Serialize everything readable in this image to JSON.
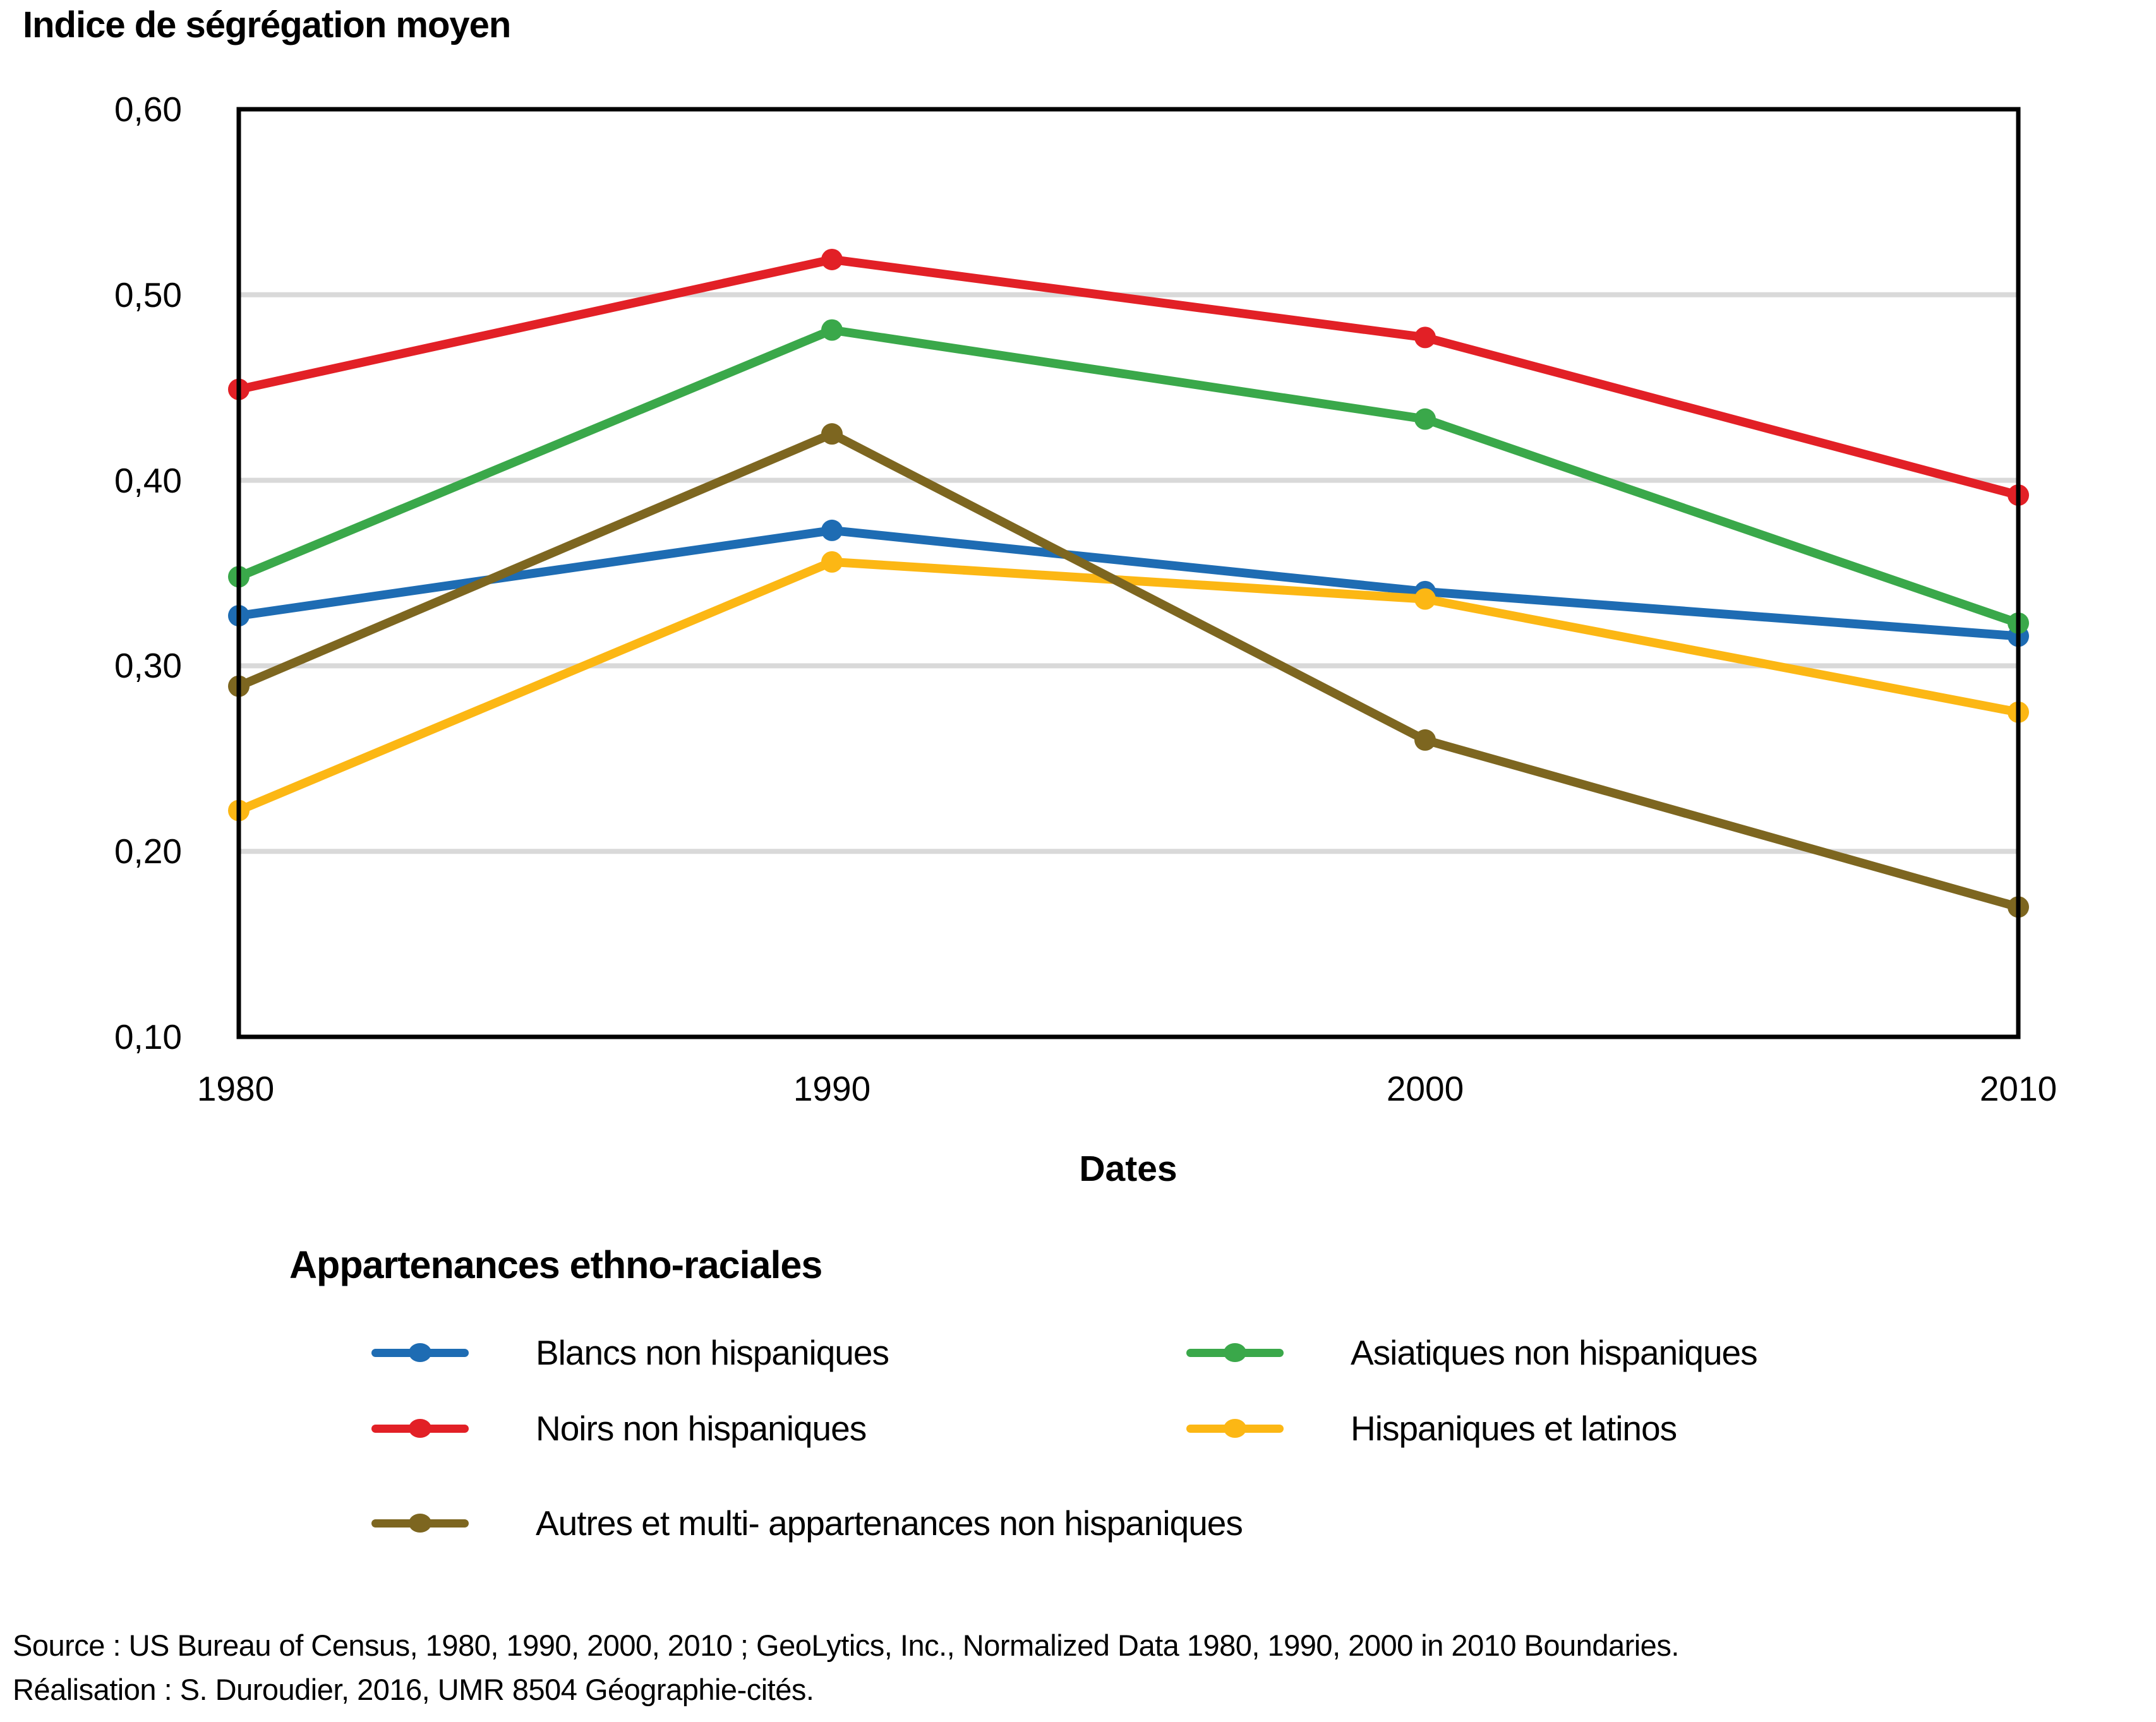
{
  "title": "Indice de ségrégation moyen",
  "chart_data": {
    "type": "line",
    "title": "Indice de ségrégation moyen",
    "x": [
      1980,
      1990,
      2000,
      2010
    ],
    "x_tick_labels": [
      "1980",
      "1990",
      "2000",
      "2010"
    ],
    "xlabel": "Dates",
    "ylabel": "Indice de ségrégation moyen",
    "ylim": [
      0.1,
      0.6
    ],
    "y_ticks": [
      0.6,
      0.5,
      0.4,
      0.3,
      0.2,
      0.1
    ],
    "y_tick_labels": [
      "0,60",
      "0,50",
      "0,40",
      "0,30",
      "0,20",
      "0,10"
    ],
    "grid": "horizontal-gridlines-on",
    "gridline_color": "#d9d9d9",
    "axis_box_color": "#000000",
    "legend_title": "Appartenances ethno-raciales",
    "legend_position": "below-chart, two columns then full-width row",
    "series": [
      {
        "name": "Blancs non hispaniques",
        "color": "#1e6cb3",
        "values": [
          0.327,
          0.373,
          0.34,
          0.316
        ]
      },
      {
        "name": "Noirs non hispaniques",
        "color": "#e22026",
        "values": [
          0.449,
          0.519,
          0.477,
          0.392
        ]
      },
      {
        "name": "Asiatiques non hispaniques",
        "color": "#3aa84a",
        "values": [
          0.348,
          0.481,
          0.433,
          0.323
        ]
      },
      {
        "name": "Hispaniques et latinos",
        "color": "#fcb714",
        "values": [
          0.222,
          0.356,
          0.336,
          0.275
        ]
      },
      {
        "name": "Autres  et multi- appartenances non hispaniques",
        "color": "#7d6620",
        "values": [
          0.289,
          0.425,
          0.26,
          0.17
        ]
      }
    ]
  },
  "source": {
    "line1": "Source : US Bureau of Census, 1980, 1990, 2000, 2010 ; GeoLytics, Inc., Normalized Data 1980, 1990, 2000 in 2010 Boundaries.",
    "line2": "Réalisation : S. Duroudier, 2016, UMR 8504 Géographie-cités."
  }
}
